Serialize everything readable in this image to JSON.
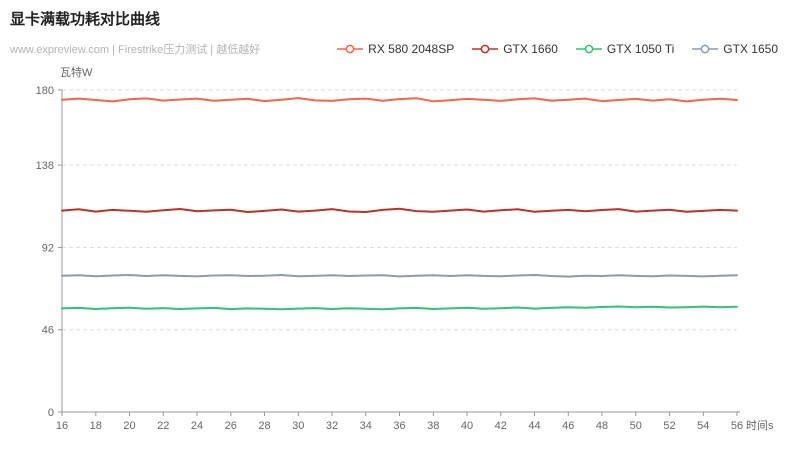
{
  "header": {
    "title": "显卡满载功耗对比曲线"
  },
  "meta": {
    "subtitle": "www.expreview.com | Firestrike压力测试 | 越低越好"
  },
  "axes": {
    "y_unit": "瓦特W",
    "x_unit": "时间s"
  },
  "chart_data": {
    "type": "line",
    "title": "显卡满载功耗对比曲线",
    "subtitle": "www.expreview.com | Firestrike压力测试 | 越低越好",
    "xlabel": "时间s",
    "ylabel": "瓦特W",
    "xlim": [
      16,
      56
    ],
    "ylim": [
      0,
      180
    ],
    "xticks": [
      16,
      18,
      20,
      22,
      24,
      26,
      28,
      30,
      32,
      34,
      36,
      38,
      40,
      42,
      44,
      46,
      48,
      50,
      52,
      54,
      56
    ],
    "yticks": [
      0,
      46,
      92,
      138,
      180
    ],
    "grid": "horizontal-dashed",
    "legend_position": "top-right",
    "x": [
      16,
      17,
      18,
      19,
      20,
      21,
      22,
      23,
      24,
      25,
      26,
      27,
      28,
      29,
      30,
      31,
      32,
      33,
      34,
      35,
      36,
      37,
      38,
      39,
      40,
      41,
      42,
      43,
      44,
      45,
      46,
      47,
      48,
      49,
      50,
      51,
      52,
      53,
      54,
      55,
      56
    ],
    "series": [
      {
        "name": "RX 580 2048SP",
        "color": "#f3664b",
        "values": [
          174.6,
          175.2,
          174.4,
          173.6,
          174.8,
          175.3,
          174.1,
          174.7,
          175.2,
          174.0,
          174.6,
          175.1,
          173.8,
          174.5,
          175.5,
          174.2,
          173.9,
          174.8,
          175.2,
          174.0,
          174.9,
          175.4,
          173.7,
          174.3,
          175.0,
          174.6,
          173.9,
          174.8,
          175.3,
          174.1,
          174.6,
          175.2,
          173.8,
          174.4,
          175.0,
          174.1,
          174.8,
          173.6,
          174.5,
          175.1,
          174.4
        ]
      },
      {
        "name": "GTX 1660",
        "color": "#b5342c",
        "values": [
          112.6,
          113.3,
          112.0,
          113.0,
          112.5,
          111.9,
          112.8,
          113.5,
          112.2,
          112.7,
          113.1,
          111.8,
          112.4,
          113.2,
          112.0,
          112.6,
          113.4,
          112.1,
          111.8,
          113.0,
          113.6,
          112.3,
          111.9,
          112.6,
          113.2,
          112.0,
          112.8,
          113.3,
          111.9,
          112.5,
          113.0,
          112.2,
          112.9,
          113.4,
          112.0,
          112.6,
          113.1,
          111.9,
          112.4,
          113.0,
          112.6
        ]
      },
      {
        "name": "GTX 1050 Ti",
        "color": "#34bf7b",
        "values": [
          57.9,
          58.2,
          57.6,
          58.0,
          58.3,
          57.7,
          58.1,
          57.6,
          57.9,
          58.2,
          57.5,
          57.9,
          57.7,
          57.4,
          57.8,
          58.1,
          57.6,
          58.0,
          57.7,
          57.4,
          57.9,
          58.2,
          57.6,
          57.9,
          58.3,
          57.7,
          58.0,
          58.4,
          57.8,
          58.2,
          58.6,
          58.3,
          58.7,
          59.0,
          58.5,
          58.8,
          58.4,
          58.6,
          58.9,
          58.6,
          58.8
        ]
      },
      {
        "name": "GTX 1650",
        "color": "#8e9bab",
        "values": [
          76.2,
          76.5,
          75.9,
          76.3,
          76.6,
          76.0,
          76.4,
          76.1,
          75.8,
          76.3,
          76.5,
          76.0,
          76.2,
          76.6,
          75.9,
          76.1,
          76.4,
          76.0,
          76.3,
          76.5,
          75.8,
          76.2,
          76.4,
          76.0,
          76.5,
          76.1,
          75.9,
          76.3,
          76.6,
          76.0,
          75.7,
          76.2,
          76.0,
          76.4,
          76.1,
          75.9,
          76.3,
          76.1,
          75.8,
          76.2,
          76.4
        ]
      }
    ]
  }
}
